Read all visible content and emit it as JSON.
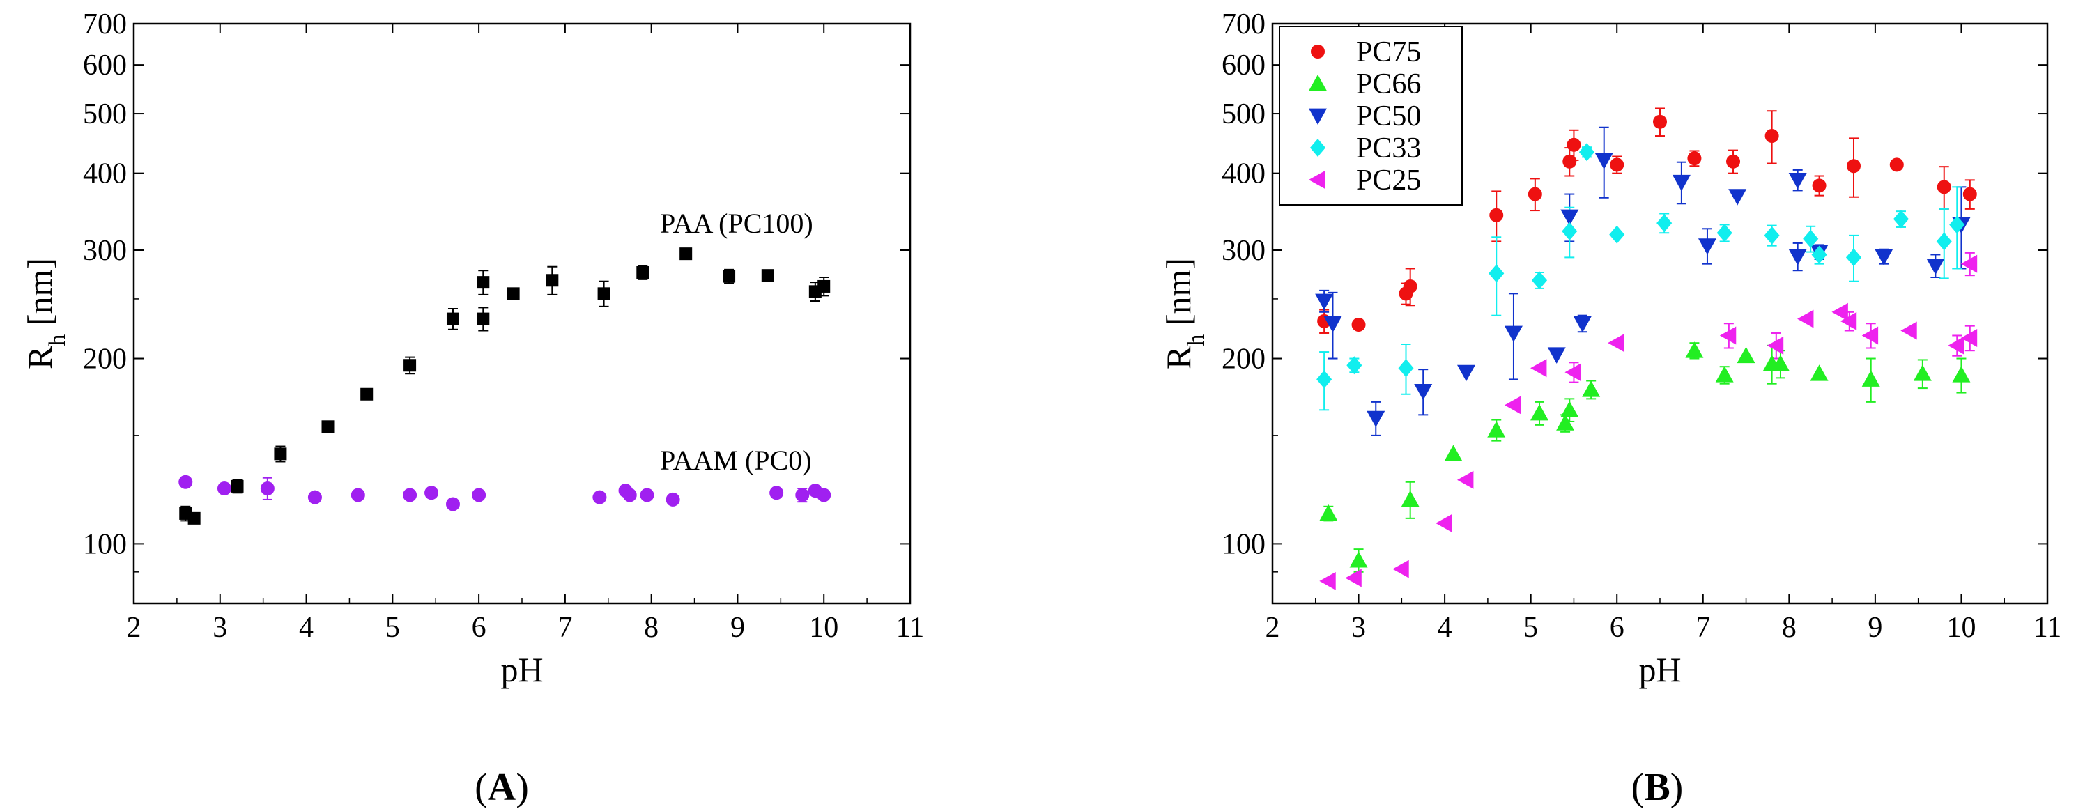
{
  "figure": {
    "panels": [
      "A",
      "B"
    ]
  },
  "chart_data": [
    {
      "type": "scatter",
      "panel_label": "(A)",
      "panel_letter": "A",
      "xlabel": "pH",
      "ylabel": "R",
      "ylabel_subscript": "h",
      "ylabel_unit": " [nm]",
      "xlim": [
        2,
        11
      ],
      "ylim": [
        80,
        700
      ],
      "yscale": "log",
      "x_ticks": [
        2,
        3,
        4,
        5,
        6,
        7,
        8,
        9,
        10,
        11
      ],
      "y_ticks": [
        100,
        200,
        300,
        400,
        500,
        600,
        700
      ],
      "x_tick_labels": [
        "2",
        "3",
        "4",
        "5",
        "6",
        "7",
        "8",
        "9",
        "10",
        "11"
      ],
      "y_tick_labels": [
        "100",
        "200",
        "300",
        "400",
        "500",
        "600",
        "700"
      ],
      "annotations": [
        {
          "text": "PAA (PC100)",
          "x": 8.1,
          "y": 320
        },
        {
          "text": "PAAM (PC0)",
          "x": 8.1,
          "y": 132
        }
      ],
      "series": [
        {
          "name": "PAA (PC100)",
          "marker": "square",
          "color": "#000000",
          "points": [
            {
              "x": 2.6,
              "y": 112,
              "err": 3
            },
            {
              "x": 2.7,
              "y": 110,
              "err": 2
            },
            {
              "x": 3.2,
              "y": 124,
              "err": 3
            },
            {
              "x": 3.7,
              "y": 140,
              "err": 4
            },
            {
              "x": 4.25,
              "y": 155,
              "err": 2
            },
            {
              "x": 4.7,
              "y": 175,
              "err": 2
            },
            {
              "x": 5.2,
              "y": 195,
              "err": 6
            },
            {
              "x": 5.7,
              "y": 232,
              "err": 9
            },
            {
              "x": 6.05,
              "y": 232,
              "err": 10
            },
            {
              "x": 6.05,
              "y": 266,
              "err": 12
            },
            {
              "x": 6.4,
              "y": 255,
              "err": 4
            },
            {
              "x": 6.85,
              "y": 268,
              "err": 14
            },
            {
              "x": 7.45,
              "y": 255,
              "err": 12
            },
            {
              "x": 7.9,
              "y": 276,
              "err": 7
            },
            {
              "x": 8.4,
              "y": 296,
              "err": 3
            },
            {
              "x": 8.9,
              "y": 272,
              "err": 7
            },
            {
              "x": 9.35,
              "y": 273,
              "err": 5
            },
            {
              "x": 9.9,
              "y": 257,
              "err": 9
            },
            {
              "x": 10.0,
              "y": 262,
              "err": 9
            }
          ]
        },
        {
          "name": "PAAM (PC0)",
          "marker": "circle",
          "color": "#a020f0",
          "points": [
            {
              "x": 2.6,
              "y": 126,
              "err": 0
            },
            {
              "x": 3.05,
              "y": 123,
              "err": 0
            },
            {
              "x": 3.55,
              "y": 123,
              "err": 5
            },
            {
              "x": 4.1,
              "y": 119,
              "err": 0
            },
            {
              "x": 4.6,
              "y": 120,
              "err": 0
            },
            {
              "x": 5.2,
              "y": 120,
              "err": 0
            },
            {
              "x": 5.45,
              "y": 121,
              "err": 0
            },
            {
              "x": 5.7,
              "y": 116,
              "err": 0
            },
            {
              "x": 6.0,
              "y": 120,
              "err": 0
            },
            {
              "x": 7.4,
              "y": 119,
              "err": 0
            },
            {
              "x": 7.7,
              "y": 122,
              "err": 0
            },
            {
              "x": 7.75,
              "y": 120,
              "err": 0
            },
            {
              "x": 7.95,
              "y": 120,
              "err": 0
            },
            {
              "x": 8.25,
              "y": 118,
              "err": 0
            },
            {
              "x": 9.45,
              "y": 121,
              "err": 0
            },
            {
              "x": 9.75,
              "y": 120,
              "err": 3
            },
            {
              "x": 9.9,
              "y": 122,
              "err": 2
            },
            {
              "x": 10.0,
              "y": 120,
              "err": 0
            }
          ]
        }
      ]
    },
    {
      "type": "scatter",
      "panel_label": "(B)",
      "panel_letter": "B",
      "xlabel": "pH",
      "ylabel": "R",
      "ylabel_subscript": "h",
      "ylabel_unit": " [nm]",
      "xlim": [
        2,
        11
      ],
      "ylim": [
        80,
        700
      ],
      "yscale": "log",
      "x_ticks": [
        2,
        3,
        4,
        5,
        6,
        7,
        8,
        9,
        10,
        11
      ],
      "y_ticks": [
        100,
        200,
        300,
        400,
        500,
        600,
        700
      ],
      "x_tick_labels": [
        "2",
        "3",
        "4",
        "5",
        "6",
        "7",
        "8",
        "9",
        "10",
        "11"
      ],
      "y_tick_labels": [
        "100",
        "200",
        "300",
        "400",
        "500",
        "600",
        "700"
      ],
      "legend": {
        "position": "top-left",
        "entries": [
          "PC75",
          "PC66",
          "PC50",
          "PC33",
          "PC25"
        ]
      },
      "series": [
        {
          "name": "PC75",
          "marker": "circle",
          "color": "#ee1111",
          "points": [
            {
              "x": 2.6,
              "y": 230,
              "err": 10
            },
            {
              "x": 3.0,
              "y": 227,
              "err": 0
            },
            {
              "x": 3.55,
              "y": 255,
              "err": 10
            },
            {
              "x": 3.6,
              "y": 262,
              "err": 18
            },
            {
              "x": 4.6,
              "y": 342,
              "err": 32
            },
            {
              "x": 5.05,
              "y": 370,
              "err": 22
            },
            {
              "x": 5.45,
              "y": 418,
              "err": 22
            },
            {
              "x": 5.5,
              "y": 445,
              "err": 25
            },
            {
              "x": 6.0,
              "y": 413,
              "err": 13
            },
            {
              "x": 6.5,
              "y": 485,
              "err": 25
            },
            {
              "x": 6.9,
              "y": 423,
              "err": 12
            },
            {
              "x": 7.35,
              "y": 418,
              "err": 18
            },
            {
              "x": 7.8,
              "y": 460,
              "err": 45
            },
            {
              "x": 8.35,
              "y": 382,
              "err": 14
            },
            {
              "x": 8.75,
              "y": 411,
              "err": 45
            },
            {
              "x": 9.25,
              "y": 413,
              "err": 0
            },
            {
              "x": 9.8,
              "y": 380,
              "err": 30
            },
            {
              "x": 10.1,
              "y": 370,
              "err": 20
            }
          ]
        },
        {
          "name": "PC66",
          "marker": "triangle-up",
          "color": "#22ee22",
          "points": [
            {
              "x": 2.65,
              "y": 112,
              "err": 3
            },
            {
              "x": 3.0,
              "y": 94,
              "err": 4
            },
            {
              "x": 3.6,
              "y": 118,
              "err": 8
            },
            {
              "x": 4.1,
              "y": 140,
              "err": 0
            },
            {
              "x": 4.6,
              "y": 153,
              "err": 6
            },
            {
              "x": 5.1,
              "y": 163,
              "err": 7
            },
            {
              "x": 5.4,
              "y": 157,
              "err": 5
            },
            {
              "x": 5.45,
              "y": 165,
              "err": 7
            },
            {
              "x": 5.7,
              "y": 178,
              "err": 6
            },
            {
              "x": 6.9,
              "y": 206,
              "err": 6
            },
            {
              "x": 7.25,
              "y": 188,
              "err": 6
            },
            {
              "x": 7.5,
              "y": 202,
              "err": 0
            },
            {
              "x": 7.8,
              "y": 196,
              "err": 14
            },
            {
              "x": 7.9,
              "y": 196,
              "err": 10
            },
            {
              "x": 8.35,
              "y": 189,
              "err": 0
            },
            {
              "x": 8.95,
              "y": 185,
              "err": 15
            },
            {
              "x": 9.55,
              "y": 189,
              "err": 10
            },
            {
              "x": 10.0,
              "y": 188,
              "err": 12
            }
          ]
        },
        {
          "name": "PC50",
          "marker": "triangle-down",
          "color": "#1133cc",
          "points": [
            {
              "x": 2.6,
              "y": 248,
              "err": 10
            },
            {
              "x": 2.7,
              "y": 228,
              "err": 28
            },
            {
              "x": 3.2,
              "y": 160,
              "err": 10
            },
            {
              "x": 3.75,
              "y": 177,
              "err": 15
            },
            {
              "x": 4.25,
              "y": 190,
              "err": 0
            },
            {
              "x": 4.8,
              "y": 220,
              "err": 35
            },
            {
              "x": 5.3,
              "y": 203,
              "err": 0
            },
            {
              "x": 5.45,
              "y": 340,
              "err": 30
            },
            {
              "x": 5.6,
              "y": 228,
              "err": 7
            },
            {
              "x": 5.85,
              "y": 420,
              "err": 55
            },
            {
              "x": 6.75,
              "y": 387,
              "err": 30
            },
            {
              "x": 7.05,
              "y": 305,
              "err": 20
            },
            {
              "x": 7.4,
              "y": 367,
              "err": 0
            },
            {
              "x": 8.1,
              "y": 390,
              "err": 15
            },
            {
              "x": 8.1,
              "y": 293,
              "err": 15
            },
            {
              "x": 8.35,
              "y": 298,
              "err": 8
            },
            {
              "x": 9.1,
              "y": 293,
              "err": 8
            },
            {
              "x": 9.7,
              "y": 283,
              "err": 12
            },
            {
              "x": 10.0,
              "y": 330,
              "err": 50
            }
          ]
        },
        {
          "name": "PC33",
          "marker": "diamond",
          "color": "#11eeee",
          "points": [
            {
              "x": 2.6,
              "y": 185,
              "err": 20
            },
            {
              "x": 2.95,
              "y": 195,
              "err": 5
            },
            {
              "x": 3.55,
              "y": 193,
              "err": 18
            },
            {
              "x": 4.6,
              "y": 275,
              "err": 40
            },
            {
              "x": 5.1,
              "y": 268,
              "err": 8
            },
            {
              "x": 5.45,
              "y": 322,
              "err": 30
            },
            {
              "x": 5.65,
              "y": 433,
              "err": 8
            },
            {
              "x": 6.0,
              "y": 318,
              "err": 0
            },
            {
              "x": 6.55,
              "y": 332,
              "err": 12
            },
            {
              "x": 7.25,
              "y": 320,
              "err": 10
            },
            {
              "x": 7.8,
              "y": 317,
              "err": 12
            },
            {
              "x": 8.25,
              "y": 313,
              "err": 15
            },
            {
              "x": 8.35,
              "y": 295,
              "err": 10
            },
            {
              "x": 8.75,
              "y": 292,
              "err": 25
            },
            {
              "x": 9.3,
              "y": 337,
              "err": 10
            },
            {
              "x": 9.8,
              "y": 310,
              "err": 40
            },
            {
              "x": 9.95,
              "y": 330,
              "err": 50
            }
          ]
        },
        {
          "name": "PC25",
          "marker": "triangle-left",
          "color": "#ee22ee",
          "points": [
            {
              "x": 2.65,
              "y": 87,
              "err": 0
            },
            {
              "x": 2.95,
              "y": 88,
              "err": 0
            },
            {
              "x": 3.5,
              "y": 91,
              "err": 0
            },
            {
              "x": 4.0,
              "y": 108,
              "err": 0
            },
            {
              "x": 4.25,
              "y": 127,
              "err": 0
            },
            {
              "x": 4.8,
              "y": 168,
              "err": 0
            },
            {
              "x": 5.1,
              "y": 193,
              "err": 0
            },
            {
              "x": 5.5,
              "y": 190,
              "err": 7
            },
            {
              "x": 6.0,
              "y": 212,
              "err": 0
            },
            {
              "x": 7.3,
              "y": 218,
              "err": 10
            },
            {
              "x": 7.85,
              "y": 210,
              "err": 10
            },
            {
              "x": 8.2,
              "y": 232,
              "err": 0
            },
            {
              "x": 8.6,
              "y": 238,
              "err": 0
            },
            {
              "x": 8.7,
              "y": 230,
              "err": 8
            },
            {
              "x": 8.95,
              "y": 218,
              "err": 10
            },
            {
              "x": 9.4,
              "y": 222,
              "err": 0
            },
            {
              "x": 9.95,
              "y": 210,
              "err": 8
            },
            {
              "x": 10.1,
              "y": 216,
              "err": 10
            },
            {
              "x": 10.1,
              "y": 285,
              "err": 12
            }
          ]
        }
      ]
    }
  ]
}
